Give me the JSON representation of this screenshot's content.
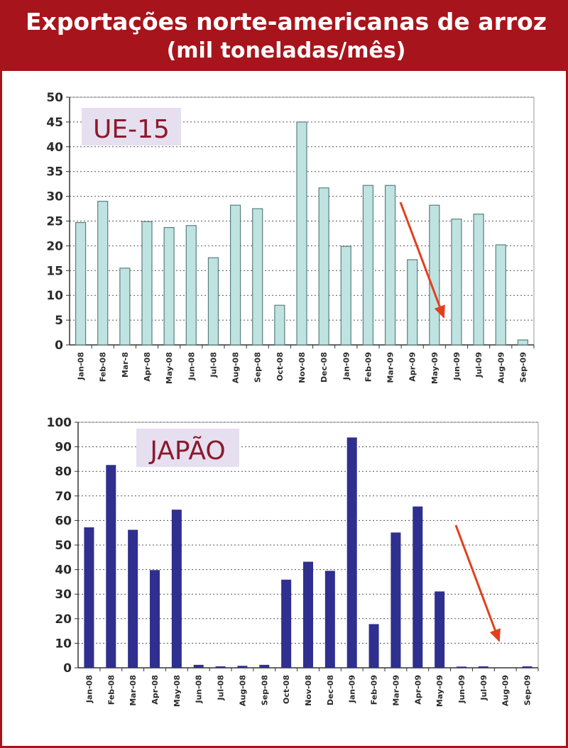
{
  "header": {
    "title": "Exportações norte-americanas de arroz",
    "subtitle": "(mil toneladas/mês)"
  },
  "colors": {
    "header_bg": "#a8141b",
    "ue_bar_fill": "#bfe3e1",
    "ue_bar_stroke": "#5a7f7f",
    "japan_bar_fill": "#2e2f8e",
    "arrow": "#e2401c",
    "label_bg": "#e6dff0",
    "label_text": "#8b1a2b"
  },
  "chart_data": [
    {
      "type": "bar",
      "title": "UE-15",
      "categories": [
        "Jan-08",
        "Feb-08",
        "Mar-08",
        "Apr-08",
        "May-08",
        "Jun-08",
        "Jul-08",
        "Aug-08",
        "Sep-08",
        "Oct-08",
        "Nov-08",
        "Dec-08",
        "Jan-09",
        "Feb-09",
        "Mar-09",
        "Apr-09",
        "May-09",
        "Jun-09",
        "Jul-09",
        "Aug-09",
        "Sep-09"
      ],
      "tick_labels": [
        "Jan-08",
        "Feb-08",
        "Mar-8",
        "Apr-08",
        "May-08",
        "Jun-08",
        "Jul-08",
        "Aug-08",
        "Sep-08",
        "Oct-08",
        "Nov-08",
        "Dec-08",
        "Jan-09",
        "Feb-09",
        "Mar-09",
        "Apr-09",
        "May-09",
        "Jun-09",
        "Jul-09",
        "Aug-09",
        "Sep-09"
      ],
      "values": [
        24.7,
        29.0,
        15.5,
        24.9,
        23.7,
        24.1,
        17.6,
        28.2,
        27.5,
        8.0,
        45.0,
        31.7,
        19.9,
        32.2,
        32.2,
        17.2,
        28.2,
        25.4,
        26.4,
        20.2,
        1.0
      ],
      "ylim": [
        0,
        50
      ],
      "yticks": [
        0,
        5,
        10,
        15,
        20,
        25,
        30,
        35,
        40,
        45,
        50
      ],
      "grid": true,
      "annotation": "downward-arrow"
    },
    {
      "type": "bar",
      "title": "JAPÃO",
      "categories": [
        "Jan-08",
        "Feb-08",
        "Mar-08",
        "Apr-08",
        "May-08",
        "Jun-08",
        "Jul-08",
        "Aug-08",
        "Sep-08",
        "Oct-08",
        "Nov-08",
        "Dec-08",
        "Jan-09",
        "Feb-09",
        "Mar-09",
        "Apr-09",
        "May-09",
        "Jun-09",
        "Jul-09",
        "Aug-09",
        "Sep-09"
      ],
      "tick_labels": [
        "Jan-08",
        "Feb-08",
        "Mar-08",
        "Apr-08",
        "May-08",
        "Jun-08",
        "Jul-08",
        "Aug-08",
        "Sep-08",
        "Oct-08",
        "Nov-08",
        "Dec-08",
        "Jan-09",
        "Feb-09",
        "Mar-09",
        "Apr-09",
        "May-09",
        "Jun-09",
        "Jul-09",
        "Aug-09",
        "Sep-09"
      ],
      "values": [
        57.2,
        82.6,
        56.2,
        39.8,
        64.4,
        1.2,
        0.6,
        0.8,
        1.2,
        35.9,
        43.2,
        39.5,
        93.8,
        17.8,
        55.1,
        65.7,
        31.1,
        0.5,
        0.6,
        0.0,
        0.6
      ],
      "ylim": [
        0,
        100
      ],
      "yticks": [
        0,
        10,
        20,
        30,
        40,
        50,
        60,
        70,
        80,
        90,
        100
      ],
      "grid": true,
      "annotation": "downward-arrow"
    }
  ]
}
